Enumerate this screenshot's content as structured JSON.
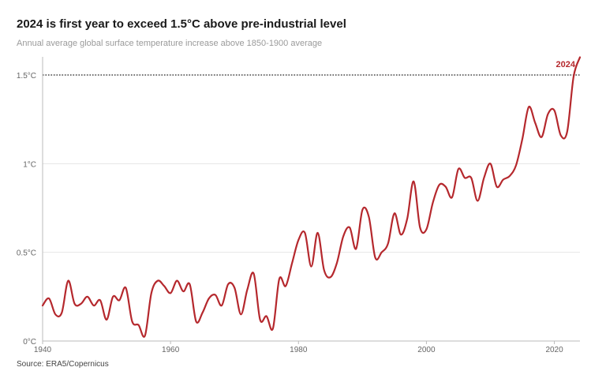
{
  "header": {
    "title": "2024 is first year to exceed 1.5°C above pre-industrial level",
    "subtitle": "Annual average global surface temperature increase above 1850-1900 average"
  },
  "footer": {
    "source": "Source: ERA5/Copernicus"
  },
  "colors": {
    "line": "#b5282d",
    "threshold": "#222222",
    "grid": "#e6e6e6",
    "axis": "#bbbbbb"
  },
  "chart_data": {
    "type": "line",
    "title": "2024 is first year to exceed 1.5°C above pre-industrial level",
    "subtitle": "Annual average global surface temperature increase above 1850-1900 average",
    "xlabel": "",
    "ylabel": "",
    "xlim": [
      1940,
      2024
    ],
    "ylim": [
      0,
      1.6
    ],
    "x_ticks": [
      1940,
      1960,
      1980,
      2000,
      2020
    ],
    "y_ticks": [
      {
        "value": 0,
        "label": "0°C"
      },
      {
        "value": 0.5,
        "label": "0.5°C"
      },
      {
        "value": 1,
        "label": "1°C"
      },
      {
        "value": 1.5,
        "label": "1.5°C"
      }
    ],
    "grid": "horizontal",
    "threshold": {
      "value": 1.5,
      "style": "dotted"
    },
    "annotations": [
      {
        "x": 2024,
        "text": "2024"
      }
    ],
    "series": [
      {
        "x": [
          1940,
          1941,
          1942,
          1943,
          1944,
          1945,
          1946,
          1947,
          1948,
          1949,
          1950,
          1951,
          1952,
          1953,
          1954,
          1955,
          1956,
          1957,
          1958,
          1959,
          1960,
          1961,
          1962,
          1963,
          1964,
          1965,
          1966,
          1967,
          1968,
          1969,
          1970,
          1971,
          1972,
          1973,
          1974,
          1975,
          1976,
          1977,
          1978,
          1979,
          1980,
          1981,
          1982,
          1983,
          1984,
          1985,
          1986,
          1987,
          1988,
          1989,
          1990,
          1991,
          1992,
          1993,
          1994,
          1995,
          1996,
          1997,
          1998,
          1999,
          2000,
          2001,
          2002,
          2003,
          2004,
          2005,
          2006,
          2007,
          2008,
          2009,
          2010,
          2011,
          2012,
          2013,
          2014,
          2015,
          2016,
          2017,
          2018,
          2019,
          2020,
          2021,
          2022,
          2023,
          2024
        ],
        "values": [
          0.2,
          0.24,
          0.15,
          0.16,
          0.34,
          0.21,
          0.21,
          0.25,
          0.2,
          0.23,
          0.12,
          0.25,
          0.23,
          0.3,
          0.11,
          0.09,
          0.03,
          0.27,
          0.34,
          0.31,
          0.27,
          0.34,
          0.28,
          0.32,
          0.11,
          0.16,
          0.24,
          0.26,
          0.2,
          0.32,
          0.3,
          0.15,
          0.29,
          0.38,
          0.12,
          0.14,
          0.07,
          0.35,
          0.31,
          0.44,
          0.57,
          0.61,
          0.42,
          0.61,
          0.4,
          0.36,
          0.44,
          0.59,
          0.64,
          0.52,
          0.74,
          0.7,
          0.47,
          0.5,
          0.55,
          0.72,
          0.6,
          0.69,
          0.9,
          0.64,
          0.63,
          0.78,
          0.88,
          0.87,
          0.81,
          0.97,
          0.92,
          0.92,
          0.79,
          0.92,
          1.0,
          0.87,
          0.91,
          0.93,
          0.99,
          1.14,
          1.32,
          1.23,
          1.15,
          1.28,
          1.3,
          1.16,
          1.18,
          1.49,
          1.6
        ]
      }
    ]
  }
}
